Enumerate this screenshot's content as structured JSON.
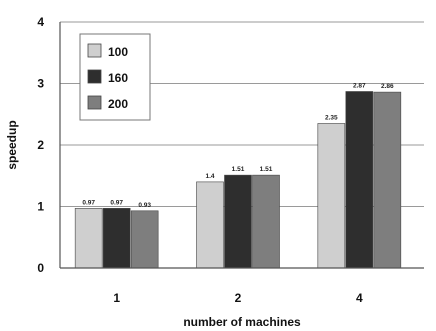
{
  "chart_data": {
    "type": "bar",
    "title": "",
    "xlabel": "number of machines",
    "ylabel": "speedup",
    "categories": [
      "1",
      "2",
      "4"
    ],
    "ylim": [
      0,
      4
    ],
    "yticks": [
      "0",
      "1",
      "2",
      "3",
      "4"
    ],
    "grid": true,
    "legend_position": "top-left",
    "series": [
      {
        "name": "100",
        "color": "#cfcfcf",
        "values": [
          0.97,
          1.4,
          2.35
        ],
        "labels": [
          "0.97",
          "1.4",
          "2.35"
        ]
      },
      {
        "name": "160",
        "color": "#2e2e2e",
        "values": [
          0.97,
          1.51,
          2.87
        ],
        "labels": [
          "0.97",
          "1.51",
          "2.87"
        ]
      },
      {
        "name": "200",
        "color": "#7e7e7e",
        "values": [
          0.93,
          1.51,
          2.86
        ],
        "labels": [
          "0.93",
          "1.51",
          "2.86"
        ]
      }
    ]
  }
}
